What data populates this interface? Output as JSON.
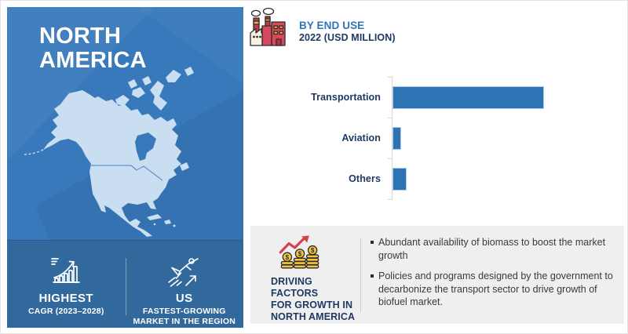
{
  "left_panel": {
    "title_line1": "NORTH",
    "title_line2": "AMERICA",
    "stats": [
      {
        "icon": "growth-chart-icon",
        "label": "HIGHEST",
        "sub_line1": "CAGR (2023–2028)",
        "sub_line2": ""
      },
      {
        "icon": "flying-person-icon",
        "label": "US",
        "sub_line1": "FASTEST-GROWING",
        "sub_line2": "MARKET IN THE REGION"
      }
    ]
  },
  "chart_header": {
    "icon": "factory-icon",
    "title": "BY END USE",
    "subtitle": "2022 (USD MILLION)"
  },
  "chart_data": {
    "type": "bar",
    "orientation": "horizontal",
    "title": "BY END USE",
    "subtitle": "2022 (USD MILLION)",
    "categories": [
      "Transportation",
      "Aviation",
      "Others"
    ],
    "values_pct_of_max": [
      100,
      5.5,
      9.5
    ],
    "value_labels_shown": false,
    "axis_labels_shown": false,
    "grid": false,
    "legend": false,
    "bar_color": "#2e74b5",
    "note": "No numeric axis shown; values estimated as percent of longest bar"
  },
  "driving_factors": {
    "icon": "coins-growth-icon",
    "title_lines": [
      "DRIVING FACTORS",
      "FOR GROWTH IN",
      "NORTH AMERICA"
    ],
    "bullets": [
      "Abundant availability of biomass to boost the market growth",
      "Policies and programs designed by the government to decarbonize the transport sector to drive growth of biofuel market."
    ]
  },
  "colors": {
    "panel_blue": "#3879bb",
    "stats_blue": "#32699c",
    "map_fill": "#cadef2",
    "navy_text": "#1f3864",
    "accent_blue": "#2e75b6",
    "bar_fill": "#2e74b5",
    "bar_border": "#aecbea",
    "factors_bg": "#efefef",
    "arrow_red": "#d6404f",
    "coin_gold": "#f7c63f",
    "body_text": "#3a3a3a"
  }
}
